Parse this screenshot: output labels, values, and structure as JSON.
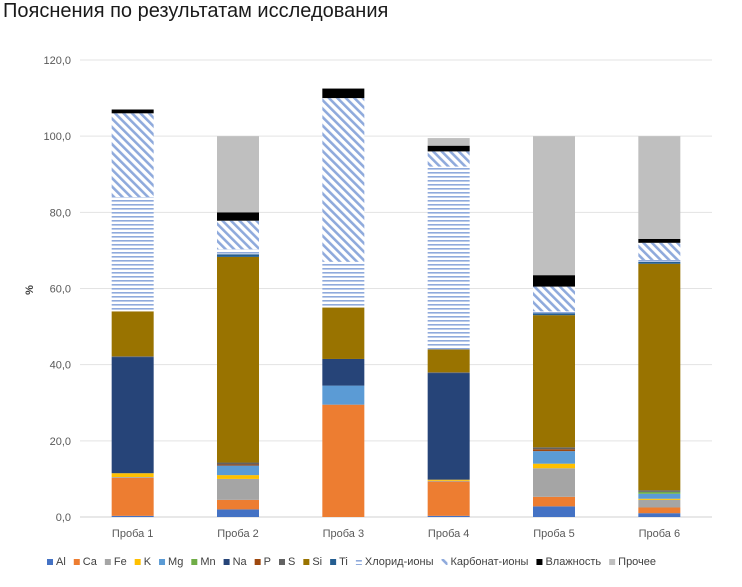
{
  "chart_data": {
    "type": "bar",
    "stacked": true,
    "title": "Пояснения по результатам исследования",
    "xlabel": "",
    "ylabel": "%",
    "ylim": [
      0,
      120
    ],
    "yticks": [
      0,
      20,
      40,
      60,
      80,
      100,
      120
    ],
    "ytick_labels": [
      "0,0",
      "20,0",
      "40,0",
      "60,0",
      "80,0",
      "100,0",
      "120,0"
    ],
    "grid": true,
    "legend_position": "bottom",
    "categories": [
      "Проба 1",
      "Проба 2",
      "Проба 3",
      "Проба 4",
      "Проба 5",
      "Проба 6"
    ],
    "series": [
      {
        "name": "Al",
        "color": "#4472c4",
        "pattern": "solid",
        "values": [
          0.3,
          2.0,
          0.0,
          0.3,
          2.8,
          1.0
        ]
      },
      {
        "name": "Ca",
        "color": "#ed7d31",
        "pattern": "solid",
        "values": [
          10.0,
          2.5,
          29.5,
          9.0,
          2.5,
          1.5
        ]
      },
      {
        "name": "Fe",
        "color": "#a5a5a5",
        "pattern": "solid",
        "values": [
          0.2,
          5.5,
          0.0,
          0.2,
          7.5,
          2.0
        ]
      },
      {
        "name": "K",
        "color": "#ffc000",
        "pattern": "solid",
        "values": [
          1.0,
          1.0,
          0.0,
          0.3,
          1.2,
          0.3
        ]
      },
      {
        "name": "Mg",
        "color": "#5b9bd5",
        "pattern": "solid",
        "values": [
          0.0,
          2.5,
          5.0,
          0.0,
          3.3,
          1.3
        ]
      },
      {
        "name": "Mn",
        "color": "#70ad47",
        "pattern": "solid",
        "values": [
          0.0,
          0.0,
          0.0,
          0.0,
          0.0,
          0.5
        ]
      },
      {
        "name": "Na",
        "color": "#264478",
        "pattern": "solid",
        "values": [
          30.5,
          0.0,
          7.0,
          28.0,
          0.0,
          0.0
        ]
      },
      {
        "name": "P",
        "color": "#9e480e",
        "pattern": "solid",
        "values": [
          0.0,
          0.3,
          0.0,
          0.0,
          0.5,
          0.0
        ]
      },
      {
        "name": "S",
        "color": "#636363",
        "pattern": "solid",
        "values": [
          0.2,
          0.5,
          0.0,
          0.2,
          0.5,
          0.4
        ]
      },
      {
        "name": "Si",
        "color": "#997300",
        "pattern": "solid",
        "values": [
          11.8,
          54.0,
          13.5,
          6.0,
          34.7,
          59.5
        ]
      },
      {
        "name": "Ti",
        "color": "#255e91",
        "pattern": "solid",
        "values": [
          0.0,
          0.7,
          0.0,
          0.0,
          0.5,
          0.5
        ]
      },
      {
        "name": "Хлорид-ионы",
        "color": "#8faadc",
        "pattern": "hlines",
        "values": [
          30.0,
          1.3,
          12.0,
          48.0,
          0.5,
          0.5
        ]
      },
      {
        "name": "Карбонат-ионы",
        "color": "#8faadc",
        "pattern": "diag",
        "values": [
          22.0,
          7.5,
          43.0,
          4.0,
          6.5,
          4.5
        ]
      },
      {
        "name": "Влажность",
        "color": "#000000",
        "pattern": "solid",
        "values": [
          1.0,
          2.2,
          2.5,
          1.5,
          3.0,
          1.0
        ]
      },
      {
        "name": "Прочее",
        "color": "#bfbfbf",
        "pattern": "solid",
        "values": [
          0.0,
          20.0,
          0.0,
          2.0,
          36.5,
          27.0
        ]
      }
    ]
  }
}
